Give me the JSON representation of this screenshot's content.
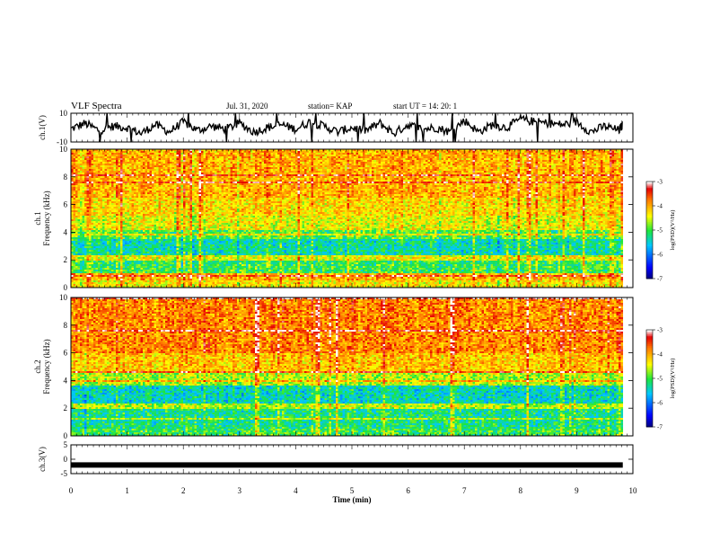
{
  "header": {
    "title": "VLF Spectra",
    "date": "Jul. 31, 2020",
    "station": "station= KAP",
    "start": "start  UT =   14: 20: 1"
  },
  "chart_data": [
    {
      "type": "line",
      "panel": "ch1-waveform",
      "ylabel": "ch.1(V)",
      "yticks": [
        "10",
        "-10"
      ],
      "ylim": [
        -10,
        10
      ],
      "xlim": [
        0,
        10
      ],
      "series": [
        {
          "x": [
            0,
            0.25,
            0.5,
            0.75,
            1.0,
            1.25,
            1.5,
            1.75,
            2.0,
            2.25,
            2.5,
            2.75,
            3.0,
            3.25,
            3.5,
            3.75,
            4.0,
            4.25,
            4.5,
            4.75,
            5.0,
            5.25,
            5.5,
            5.75,
            6.0,
            6.25,
            6.5,
            6.75,
            7.0,
            7.25,
            7.5,
            7.75,
            8.0,
            8.25,
            8.5,
            8.75,
            9.0,
            9.25,
            9.5,
            9.75,
            9.82
          ],
          "values": [
            -1,
            3,
            -2,
            1,
            0,
            -4,
            2,
            -3,
            4,
            -2,
            1,
            -1,
            3,
            -3,
            0,
            2,
            -1,
            4,
            1,
            -3,
            0,
            -2,
            3,
            -4,
            2,
            -1,
            0,
            -3,
            5,
            -3,
            2,
            0,
            6,
            4,
            3,
            2,
            4,
            -3,
            1,
            -2,
            2
          ]
        }
      ]
    },
    {
      "type": "heatmap",
      "panel": "ch1-spectrogram",
      "ylabel": "ch.1\nFrequency (kHz)",
      "yticks": [
        "0",
        "2",
        "4",
        "6",
        "8",
        "10"
      ],
      "ylim": [
        0,
        10
      ],
      "xlim": [
        0,
        10
      ],
      "data_xrange": [
        0,
        9.82
      ],
      "colorbar": {
        "label": "log(PSD)(V²/Hz)",
        "ticks": [
          "-3",
          "-4",
          "-5",
          "-6",
          "-7"
        ],
        "range": [
          -7,
          -3
        ]
      },
      "level_by_band": [
        {
          "from": 0,
          "to": 0.5,
          "level": -4.3
        },
        {
          "from": 0.5,
          "to": 1.0,
          "level": -4.0
        },
        {
          "from": 1.0,
          "to": 2.0,
          "level": -5.0
        },
        {
          "from": 2.0,
          "to": 2.3,
          "level": -4.4
        },
        {
          "from": 2.3,
          "to": 3.5,
          "level": -5.3
        },
        {
          "from": 3.5,
          "to": 4.2,
          "level": -4.9
        },
        {
          "from": 4.2,
          "to": 5.2,
          "level": -4.4
        },
        {
          "from": 5.2,
          "to": 6.5,
          "level": -4.2
        },
        {
          "from": 6.5,
          "to": 10.0,
          "level": -4.0
        }
      ]
    },
    {
      "type": "heatmap",
      "panel": "ch2-spectrogram",
      "ylabel": "ch.2\nFrequency (kHz)",
      "yticks": [
        "0",
        "2",
        "4",
        "6",
        "8",
        "10"
      ],
      "ylim": [
        0,
        10
      ],
      "xlim": [
        0,
        10
      ],
      "data_xrange": [
        0,
        9.82
      ],
      "colorbar": {
        "label": "log(PSD)(V²/Hz)",
        "ticks": [
          "-3",
          "-4",
          "-5",
          "-6",
          "-7"
        ],
        "range": [
          -7,
          -3
        ]
      },
      "level_by_band": [
        {
          "from": 0,
          "to": 0.5,
          "level": -5.0
        },
        {
          "from": 0.5,
          "to": 2.0,
          "level": -5.2
        },
        {
          "from": 2.0,
          "to": 2.3,
          "level": -4.6
        },
        {
          "from": 2.3,
          "to": 3.6,
          "level": -5.4
        },
        {
          "from": 3.6,
          "to": 4.5,
          "level": -4.6
        },
        {
          "from": 4.5,
          "to": 6.0,
          "level": -4.1
        },
        {
          "from": 6.0,
          "to": 10.0,
          "level": -3.8
        }
      ]
    },
    {
      "type": "line",
      "panel": "ch3-waveform",
      "ylabel": "ch.3(V)",
      "yticks": [
        "5",
        "0",
        "-5"
      ],
      "ylim": [
        -5,
        5
      ],
      "xlim": [
        0,
        10
      ],
      "series": [
        {
          "x": [
            0,
            9.82
          ],
          "values": [
            -2,
            -2
          ]
        }
      ]
    }
  ],
  "xaxis": {
    "label": "Time (min)",
    "ticks": [
      "0",
      "1",
      "2",
      "3",
      "4",
      "5",
      "6",
      "7",
      "8",
      "9",
      "10"
    ]
  }
}
